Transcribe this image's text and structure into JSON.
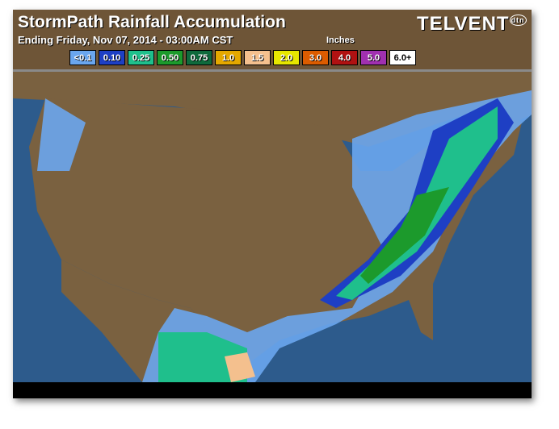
{
  "header": {
    "title": "StormPath Rainfall Accumulation",
    "subtitle": "Ending Friday, Nov 07, 2014 - 03:00AM CST",
    "units": "Inches",
    "logo": "TELVENT",
    "logo_badge": "dtn"
  },
  "legend": [
    {
      "label": "<0.1",
      "color": "#6aa6ee"
    },
    {
      "label": "0.10",
      "color": "#1e3fc4"
    },
    {
      "label": "0.25",
      "color": "#1fbf8c"
    },
    {
      "label": "0.50",
      "color": "#1c9a2c"
    },
    {
      "label": "0.75",
      "color": "#0f6a3c"
    },
    {
      "label": "1.0",
      "color": "#e4a800"
    },
    {
      "label": "1.5",
      "color": "#f4c08e"
    },
    {
      "label": "2.0",
      "color": "#e6e600"
    },
    {
      "label": "3.0",
      "color": "#dc5c00"
    },
    {
      "label": "4.0",
      "color": "#b01212"
    },
    {
      "label": "5.0",
      "color": "#a030b0"
    },
    {
      "label": "6.0+",
      "color": "#ffffff"
    }
  ],
  "colors": {
    "ocean": "#2d5b8c",
    "land": "#7a6140",
    "header": "#6e5537"
  }
}
